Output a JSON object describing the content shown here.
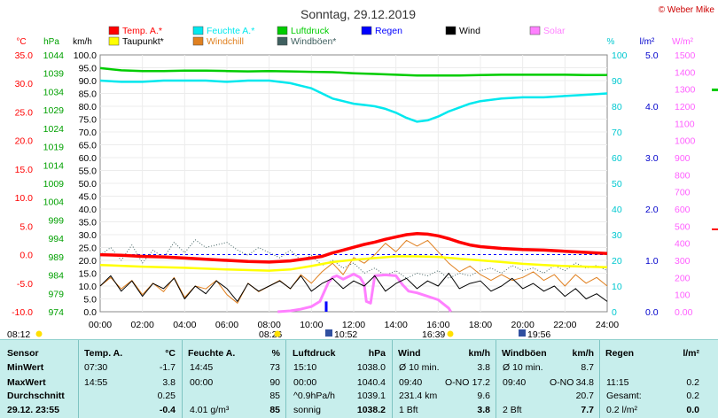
{
  "chart_data": {
    "type": "line",
    "title": "Sonntag, 29.12.2019",
    "credit": "© Weber Mike",
    "legend": [
      {
        "name": "Temp. A.*",
        "color": "#ff0000"
      },
      {
        "name": "Feuchte A.*",
        "color": "#00e8ee"
      },
      {
        "name": "Luftdruck",
        "color": "#00cc00"
      },
      {
        "name": "Regen",
        "color": "#0000ff"
      },
      {
        "name": "Wind",
        "color": "#000000"
      },
      {
        "name": "Solar",
        "color": "#ff80ff"
      },
      {
        "name": "Taupunkt*",
        "color": "#ffff00"
      },
      {
        "name": "Windchill",
        "color": "#e08020"
      },
      {
        "name": "Windböen*",
        "color": "#406060"
      }
    ],
    "axes": {
      "temp": {
        "unit": "°C",
        "color": "#ff0000",
        "ticks": [
          "35.0",
          "30.0",
          "25.0",
          "20.0",
          "15.0",
          "10.0",
          "5.0",
          "0.0",
          "-5.0",
          "-10.0"
        ],
        "min": -10,
        "max": 35
      },
      "pressure": {
        "unit": "hPa",
        "color": "#00a000",
        "ticks": [
          "1044",
          "1039",
          "1034",
          "1029",
          "1024",
          "1019",
          "1014",
          "1009",
          "1004",
          "999",
          "994",
          "989",
          "984",
          "979",
          "974"
        ],
        "min": 974,
        "max": 1044
      },
      "wind": {
        "unit": "km/h",
        "color": "#000000",
        "ticks": [
          "100.0",
          "95.0",
          "90.0",
          "85.0",
          "80.0",
          "75.0",
          "70.0",
          "65.0",
          "60.0",
          "55.0",
          "50.0",
          "45.0",
          "40.0",
          "35.0",
          "30.0",
          "25.0",
          "20.0",
          "15.0",
          "10.0",
          "5.0",
          "0.0"
        ],
        "min": 0,
        "max": 100
      },
      "humidity": {
        "unit": "%",
        "color": "#00c8d0",
        "ticks": [
          "100",
          "90",
          "80",
          "70",
          "60",
          "50",
          "40",
          "30",
          "20",
          "10",
          "0"
        ],
        "min": 0,
        "max": 100
      },
      "rain": {
        "unit": "l/m²",
        "color": "#0000cc",
        "ticks": [
          "5.0",
          "4.0",
          "3.0",
          "2.0",
          "1.0",
          "0.0"
        ],
        "min": 0,
        "max": 5
      },
      "solar": {
        "unit": "W/m²",
        "color": "#ff60ff",
        "ticks": [
          "1500",
          "1400",
          "1300",
          "1200",
          "1100",
          "1000",
          "900",
          "800",
          "700",
          "600",
          "500",
          "400",
          "300",
          "200",
          "100",
          "0.00"
        ],
        "min": 0,
        "max": 1500
      },
      "x": {
        "ticks": [
          "00:00",
          "02:00",
          "04:00",
          "06:00",
          "08:00",
          "10:00",
          "12:00",
          "14:00",
          "16:00",
          "18:00",
          "20:00",
          "22:00",
          "24:00"
        ],
        "min": 0,
        "max": 24
      }
    },
    "series": [
      {
        "name": "Luftdruck",
        "axis": "pressure",
        "color": "#00cc00",
        "width": 2.5,
        "x": [
          0,
          1,
          2,
          3,
          4,
          5,
          6,
          7,
          8,
          9,
          10,
          11,
          12,
          13,
          14,
          15,
          16,
          17,
          18,
          19,
          20,
          21,
          22,
          23,
          24
        ],
        "y": [
          1040.4,
          1039.8,
          1039.6,
          1039.6,
          1039.7,
          1039.7,
          1039.6,
          1039.5,
          1039.6,
          1039.5,
          1039.4,
          1039.3,
          1039.0,
          1038.8,
          1038.6,
          1038.4,
          1038.4,
          1038.4,
          1038.5,
          1038.6,
          1038.6,
          1038.6,
          1038.6,
          1038.5,
          1038.5
        ]
      },
      {
        "name": "Feuchte A.*",
        "axis": "humidity",
        "color": "#00e8ee",
        "width": 2.5,
        "x": [
          0,
          1,
          2,
          3,
          4,
          5,
          6,
          7,
          8,
          9,
          9.5,
          10,
          10.5,
          11,
          11.5,
          12,
          12.5,
          13,
          13.5,
          14,
          14.5,
          15,
          15.5,
          16,
          16.5,
          17,
          17.5,
          18,
          19,
          20,
          21,
          22,
          23,
          24
        ],
        "y": [
          90,
          89.5,
          89.5,
          90,
          90,
          90,
          89.5,
          90,
          90,
          89,
          88,
          87,
          85,
          83,
          82,
          81,
          80.5,
          80,
          79,
          77.5,
          75.5,
          74,
          74.5,
          76,
          78,
          79.5,
          81,
          82,
          83,
          83.5,
          83.5,
          84,
          84.5,
          85
        ]
      },
      {
        "name": "Temp. A.*",
        "axis": "temp",
        "color": "#ff0000",
        "width": 3.5,
        "x": [
          0,
          1,
          2,
          3,
          4,
          5,
          6,
          7,
          8,
          9,
          10,
          10.5,
          11,
          11.5,
          12,
          12.5,
          13,
          13.5,
          14,
          14.5,
          15,
          15.5,
          16,
          16.5,
          17,
          17.5,
          18,
          19,
          20,
          21,
          22,
          23,
          24
        ],
        "y": [
          0.0,
          -0.1,
          -0.3,
          -0.4,
          -0.6,
          -0.8,
          -1.0,
          -1.2,
          -1.3,
          -1.1,
          -0.6,
          -0.3,
          0.3,
          0.8,
          1.3,
          1.8,
          2.2,
          2.7,
          3.1,
          3.5,
          3.7,
          3.6,
          3.3,
          2.8,
          2.2,
          1.7,
          1.4,
          1.1,
          0.9,
          0.8,
          0.6,
          0.4,
          0.2
        ]
      },
      {
        "name": "Taupunkt*",
        "axis": "temp",
        "color": "#ffff00",
        "width": 2.5,
        "x": [
          0,
          2,
          4,
          6,
          8,
          9,
          10,
          11,
          12,
          13,
          14,
          15,
          16,
          17,
          18,
          19,
          20,
          21,
          22,
          23,
          24
        ],
        "y": [
          -1.8,
          -2.1,
          -2.3,
          -2.6,
          -2.8,
          -2.6,
          -2.0,
          -1.3,
          -0.9,
          -0.6,
          -0.3,
          -0.3,
          -0.4,
          -0.7,
          -1.0,
          -1.3,
          -1.6,
          -1.8,
          -2.0,
          -2.1,
          -2.2
        ]
      },
      {
        "name": "Wind",
        "axis": "wind",
        "color": "#000000",
        "width": 1,
        "x": [
          0,
          0.5,
          1,
          1.5,
          2,
          2.5,
          3,
          3.5,
          4,
          4.5,
          5,
          5.5,
          6,
          6.5,
          7,
          7.5,
          8,
          8.5,
          9,
          9.5,
          10,
          10.5,
          11,
          11.5,
          12,
          12.5,
          13,
          13.5,
          14,
          14.5,
          15,
          15.5,
          16,
          16.5,
          17,
          17.5,
          18,
          18.5,
          19,
          19.5,
          20,
          20.5,
          21,
          21.5,
          22,
          22.5,
          23,
          23.5,
          24
        ],
        "y": [
          10,
          14,
          8,
          12,
          6,
          11,
          9,
          13,
          5,
          10,
          7,
          12,
          9,
          4,
          11,
          8,
          10,
          12,
          9,
          14,
          8,
          11,
          13,
          9,
          12,
          10,
          14,
          8,
          11,
          13,
          9,
          12,
          10,
          15,
          9,
          11,
          12,
          8,
          10,
          13,
          9,
          11,
          8,
          10,
          6,
          9,
          5,
          7,
          4
        ]
      },
      {
        "name": "Windchill",
        "axis": "temp",
        "color": "#e08020",
        "width": 1,
        "x": [
          0,
          0.5,
          1,
          1.5,
          2,
          2.5,
          3,
          3.5,
          4,
          4.5,
          5,
          5.5,
          6,
          6.5,
          7,
          7.5,
          8,
          8.5,
          9,
          9.5,
          10,
          10.5,
          11,
          11.5,
          12,
          12.5,
          13,
          13.5,
          14,
          14.5,
          15,
          15.5,
          16,
          16.5,
          17,
          17.5,
          18,
          18.5,
          19,
          19.5,
          20,
          20.5,
          21,
          21.5,
          22,
          22.5,
          23,
          23.5,
          24
        ],
        "y": [
          -5.5,
          -4.0,
          -6.0,
          -4.5,
          -7.0,
          -5.0,
          -6.5,
          -4.0,
          -7.5,
          -5.5,
          -6.0,
          -4.5,
          -7.0,
          -8.5,
          -5.0,
          -6.5,
          -5.5,
          -4.5,
          -6.0,
          -3.5,
          -5.0,
          -3.0,
          -1.5,
          -3.5,
          -0.5,
          -1.5,
          0.0,
          2.0,
          0.5,
          2.5,
          1.5,
          2.5,
          0.5,
          -1.5,
          -3.0,
          -2.0,
          -3.5,
          -4.5,
          -3.5,
          -4.5,
          -4.0,
          -3.0,
          -4.5,
          -3.5,
          -5.5,
          -3.5,
          -5.0,
          -4.0,
          -5.5
        ]
      },
      {
        "name": "Windböen*",
        "axis": "wind",
        "color": "#406060",
        "width": 1,
        "dash": "1,2",
        "x": [
          0,
          0.5,
          1,
          1.5,
          2,
          2.5,
          3,
          3.5,
          4,
          4.5,
          5,
          5.5,
          6,
          6.5,
          7,
          7.5,
          8,
          8.5,
          9,
          9.5,
          10,
          10.5,
          11,
          11.5,
          12,
          12.5,
          13,
          13.5,
          14,
          14.5,
          15,
          15.5,
          16,
          16.5,
          17,
          17.5,
          18,
          18.5,
          19,
          19.5,
          20,
          20.5,
          21,
          21.5,
          22,
          22.5,
          23,
          23.5,
          24
        ],
        "y": [
          22,
          25,
          20,
          26,
          19,
          24,
          21,
          27,
          23,
          28,
          25,
          26,
          27,
          24,
          22,
          25,
          23,
          21,
          24,
          20,
          22,
          18,
          20,
          17,
          19,
          15,
          17,
          14,
          16,
          13,
          15,
          14,
          16,
          13,
          15,
          14,
          16,
          17,
          15,
          18,
          16,
          17,
          15,
          18,
          16,
          19,
          17,
          18,
          16
        ]
      },
      {
        "name": "Solar",
        "axis": "solar",
        "color": "#ff80ff",
        "width": 3,
        "x": [
          8.4,
          9.0,
          9.5,
          10.0,
          10.4,
          10.8,
          11.0,
          11.2,
          11.5,
          12.0,
          12.3,
          12.5,
          12.6,
          12.8,
          13.0,
          13.5,
          14.0,
          14.3,
          14.6,
          15.0,
          15.5,
          16.0,
          16.5,
          16.6
        ],
        "y": [
          0,
          5,
          15,
          30,
          60,
          170,
          200,
          210,
          190,
          220,
          200,
          160,
          60,
          50,
          210,
          215,
          210,
          160,
          120,
          110,
          90,
          70,
          20,
          0
        ]
      },
      {
        "name": "Regen",
        "axis": "rain",
        "color": "#0000ff",
        "width": 3,
        "x": [
          10.7,
          10.7
        ],
        "y": [
          0,
          0.2
        ]
      }
    ],
    "dashed_reference": {
      "axis": "temp",
      "value": 0,
      "color": "#0000ff"
    },
    "markers": {
      "sunrise": "08:26",
      "sunset": "16:39",
      "moonrise": "10:52",
      "moonset": "19:56",
      "current_time": "08:12"
    }
  },
  "table": {
    "headers": {
      "sensor": "Sensor",
      "temp": "Temp. A.",
      "temp_unit": "°C",
      "hum": "Feuchte A.",
      "hum_unit": "%",
      "press": "Luftdruck",
      "press_unit": "hPa",
      "wind": "Wind",
      "wind_unit": "km/h",
      "gust": "Windböen",
      "gust_unit": "km/h",
      "rain": "Regen",
      "rain_unit": "l/m²"
    },
    "rows": [
      {
        "label": "MinWert",
        "temp_time": "07:30",
        "temp_val": "-1.7",
        "hum_time": "14:45",
        "hum_val": "73",
        "press_time": "15:10",
        "press_val": "1038.0",
        "wind_label": "Ø 10 min.",
        "wind_val": "3.8",
        "gust_label": "Ø 10 min.",
        "gust_val": "8.7",
        "rain_label": "",
        "rain_val": ""
      },
      {
        "label": "MaxWert",
        "temp_time": "14:55",
        "temp_val": "3.8",
        "hum_time": "00:00",
        "hum_val": "90",
        "press_time": "00:00",
        "press_val": "1040.4",
        "wind_label": "09:40",
        "wind_dir": "O-NO",
        "wind_val": "17.2",
        "gust_label": "09:40",
        "gust_dir": "O-NO",
        "gust_val": "34.8",
        "rain_label": "11:15",
        "rain_val": "0.2"
      },
      {
        "label": "Durchschnitt",
        "temp_time": "",
        "temp_val": "0.25",
        "hum_time": "",
        "hum_val": "85",
        "press_time": "^0.9hPa/h",
        "press_val": "1039.1",
        "wind_label": "231.4 km",
        "wind_val": "9.6",
        "gust_label": "",
        "gust_val": "20.7",
        "rain_label": "Gesamt:",
        "rain_val": "0.2"
      },
      {
        "label": "29.12. 23:55",
        "temp_time": "",
        "temp_val": "-0.4",
        "hum_time": "4.01 g/m³",
        "hum_val": "85",
        "press_time": "sonnig",
        "press_val": "1038.2",
        "wind_label": "1 Bft",
        "wind_val": "3.8",
        "gust_label": "2 Bft",
        "gust_val": "7.7",
        "rain_label": "0.2 l/m²",
        "rain_val": "0.0"
      }
    ]
  }
}
